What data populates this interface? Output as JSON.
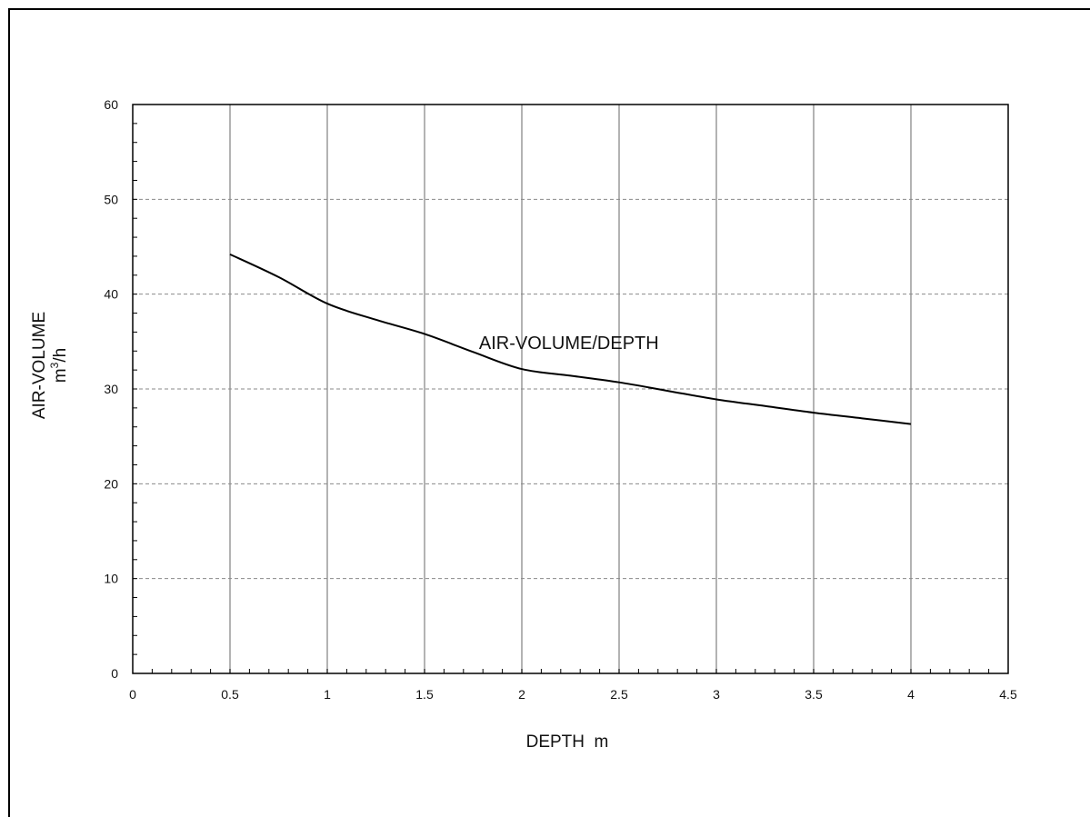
{
  "chart_data": {
    "type": "line",
    "title": "",
    "xlabel": "DEPTH  m",
    "ylabel": "AIR-VOLUME",
    "ylabel_unit_base": "m",
    "ylabel_unit_sup": "3",
    "ylabel_unit_rest": "/h",
    "xlim": [
      0,
      4.5
    ],
    "ylim": [
      0,
      60
    ],
    "x_ticks": [
      0,
      0.5,
      1,
      1.5,
      2,
      2.5,
      3,
      3.5,
      4,
      4.5
    ],
    "x_tick_labels": [
      "0",
      "0.5",
      "1",
      "1.5",
      "2",
      "2.5",
      "3",
      "3.5",
      "4",
      "4.5"
    ],
    "y_ticks": [
      0,
      10,
      20,
      30,
      40,
      50,
      60
    ],
    "y_tick_labels": [
      "0",
      "10",
      "20",
      "30",
      "40",
      "50",
      "60"
    ],
    "x_minor_step": 0.1,
    "y_minor_step": 2,
    "grid": {
      "vertical": "solid",
      "horizontal": "dashed"
    },
    "series": [
      {
        "x": [
          0.5,
          0.75,
          1.0,
          1.25,
          1.5,
          1.75,
          2.0,
          2.25,
          2.5,
          2.75,
          3.0,
          3.25,
          3.5,
          3.75,
          4.0
        ],
        "y": [
          44.2,
          41.8,
          39.0,
          37.3,
          35.8,
          33.9,
          32.1,
          31.4,
          30.7,
          29.8,
          28.9,
          28.2,
          27.5,
          26.9,
          26.3
        ],
        "color": "#000000"
      }
    ],
    "annotations": [
      {
        "text": "AIR-VOLUME/DEPTH",
        "x": 1.78,
        "y": 34.2
      }
    ]
  }
}
